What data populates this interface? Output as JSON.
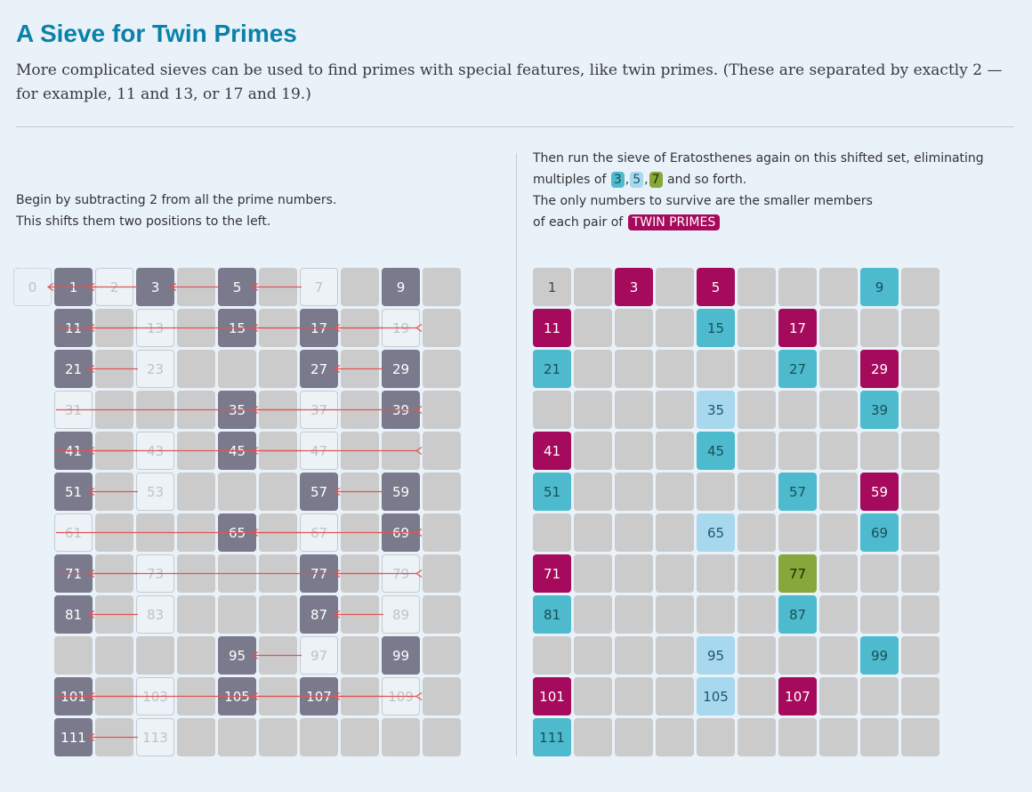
{
  "header": {
    "title": "A Sieve for Twin Primes",
    "intro": "More complicated sieves can be used to find primes with special features, like twin primes. (These are separated by exactly 2 — for example, 11 and 13, or 17 and 19.)"
  },
  "left_caption": {
    "line1": "Begin by subtracting 2 from all the prime numbers.",
    "line2": "This shifts them two positions to the left."
  },
  "right_caption": {
    "line1": "Then run the sieve of Eratosthenes again on this shifted set, eliminating",
    "line2_before": "multiples of",
    "chip_3": "3",
    "sep1": ",",
    "chip_5": "5",
    "sep2": ",",
    "chip_7": "7",
    "line2_after": "and so forth.",
    "line3": "The only numbers to survive are the smaller members",
    "line4_before": "of each pair of",
    "chip_twin": "TWIN PRIMES"
  },
  "colors": {
    "twin_prime": "#a60a5c",
    "multiple_of_3": "#4dbbcd",
    "multiple_of_5": "#a8d8ee",
    "multiple_of_7": "#87a73a",
    "shifted_number": "#7a7a8c",
    "eliminated": "#cbcbcb",
    "arrow": "#e05555"
  },
  "grid": {
    "columns": 10,
    "numbers_start": 1,
    "numbers_end": 120,
    "zero_label": "0",
    "primes": [
      2,
      3,
      5,
      7,
      11,
      13,
      17,
      19,
      23,
      29,
      31,
      37,
      41,
      43,
      47,
      53,
      59,
      61,
      67,
      71,
      73,
      79,
      83,
      89,
      97,
      101,
      103,
      107,
      109,
      113
    ],
    "shifted": [
      1,
      3,
      5,
      9,
      11,
      15,
      17,
      21,
      27,
      29,
      35,
      39,
      41,
      45,
      51,
      57,
      59,
      65,
      69,
      71,
      77,
      81,
      87,
      95,
      99,
      101,
      105,
      107,
      111
    ],
    "twin_primes": [
      3,
      5,
      11,
      17,
      29,
      41,
      59,
      71,
      101,
      107
    ],
    "multiples_of_3": [
      9,
      15,
      21,
      27,
      39,
      45,
      51,
      57,
      69,
      81,
      87,
      99,
      111
    ],
    "multiples_of_5": [
      35,
      65,
      95,
      105
    ],
    "multiples_of_7": [
      77
    ],
    "survivor_one": [
      1
    ]
  }
}
